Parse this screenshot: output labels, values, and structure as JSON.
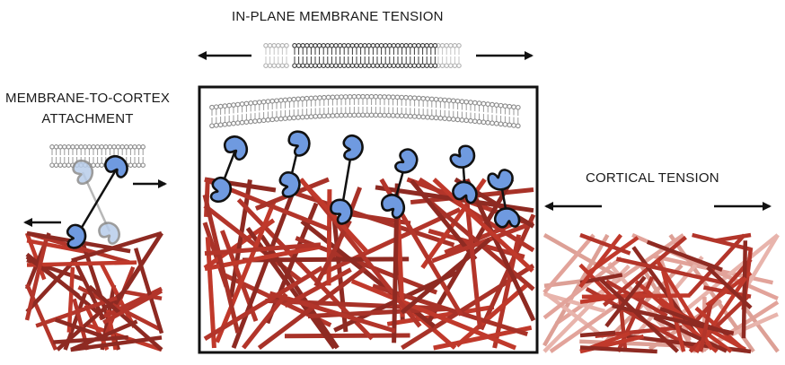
{
  "labels": {
    "in_plane_tension": "IN-PLANE MEMBRANE TENSION",
    "membrane_to_cortex_line1": "MEMBRANE-TO-CORTEX",
    "membrane_to_cortex_line2": "ATTACHMENT",
    "cortical_tension": "CORTICAL TENSION"
  },
  "colors": {
    "linker_blue": "#6f9ae0",
    "linker_ghost": "#b8cdea",
    "actin_red": "#c0392b",
    "actin_dark": "#8e2a22",
    "actin_pale": "#e2a39a",
    "outline": "#111111",
    "lipid_grey": "#8a8a8a",
    "lipid_dark": "#3a3a3a"
  },
  "icons": [
    "arrow-left-icon",
    "arrow-right-icon",
    "lipid-bilayer-icon",
    "linker-protein-icon",
    "actin-filament-icon"
  ]
}
